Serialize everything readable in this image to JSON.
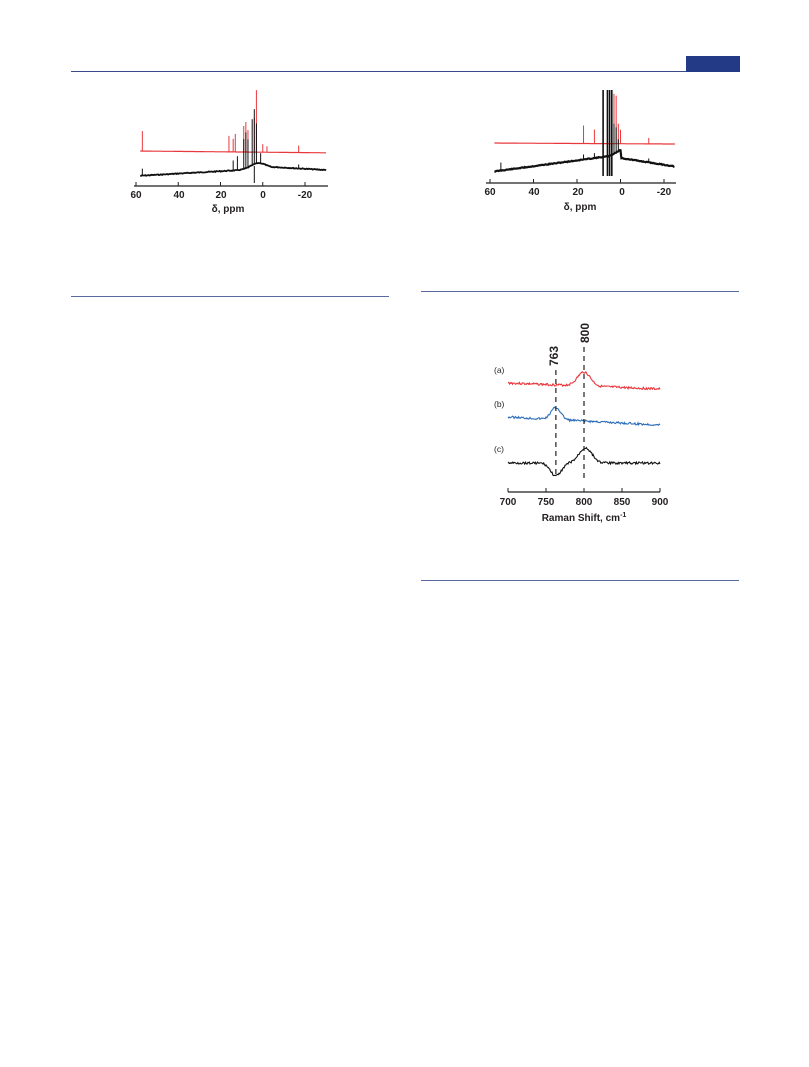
{
  "header": {
    "accent_color": "#233a86"
  },
  "figures": {
    "nmr_left": {
      "x_ticks": [
        "60",
        "40",
        "20",
        "0",
        "-20"
      ],
      "xlabel": "δ, ppm",
      "colors": {
        "top_trace": "#e8383d",
        "bottom_trace": "#111111"
      }
    },
    "nmr_right": {
      "x_ticks": [
        "60",
        "40",
        "20",
        "0",
        "-20"
      ],
      "xlabel": "δ, ppm",
      "colors": {
        "top_trace": "#e8383d",
        "bottom_trace": "#111111"
      }
    },
    "raman": {
      "x_ticks": [
        "700",
        "750",
        "800",
        "850",
        "900"
      ],
      "xlabel": "Raman Shift, cm",
      "xlabel_sup": "-1",
      "series_labels": [
        "(a)",
        "(b)",
        "(c)"
      ],
      "peak_labels": [
        "763",
        "800"
      ],
      "colors": {
        "a": "#e8383d",
        "b": "#2e6fba",
        "c": "#111111"
      }
    }
  },
  "chart_data": [
    {
      "type": "line",
      "x_ticks": [
        60,
        40,
        20,
        0,
        -20
      ],
      "xlabel": "δ, ppm",
      "xlim": [
        60,
        -30
      ],
      "series": [
        {
          "color": "#e8383d",
          "peaks_ppm": [
            57,
            16,
            14,
            13,
            9,
            8,
            7,
            4,
            3,
            0,
            -2,
            -17
          ]
        },
        {
          "color": "#111111",
          "peaks_ppm": [
            57,
            14,
            12,
            9,
            8,
            7,
            5,
            4,
            3,
            1,
            -17
          ]
        }
      ]
    },
    {
      "type": "line",
      "x_ticks": [
        60,
        40,
        20,
        0,
        -20
      ],
      "xlabel": "δ, ppm",
      "xlim": [
        60,
        -25
      ],
      "series": [
        {
          "color": "#e8383d",
          "peaks_ppm": [
            17,
            12,
            8,
            6,
            4,
            3,
            2,
            1,
            0,
            -13
          ]
        },
        {
          "color": "#111111",
          "peaks_ppm": [
            55,
            17,
            12,
            8,
            6,
            5,
            4,
            3,
            2,
            1,
            -13
          ]
        }
      ]
    },
    {
      "type": "line",
      "categories_label": "Raman Shift, cm-1",
      "x_ticks": [
        700,
        750,
        800,
        850,
        900
      ],
      "xlim": [
        700,
        900
      ],
      "reference_lines": [
        763,
        800
      ],
      "series": [
        {
          "label": "(a)",
          "color": "#e8383d",
          "features": [
            {
              "type": "peak",
              "x": 800
            }
          ]
        },
        {
          "label": "(b)",
          "color": "#2e6fba",
          "features": [
            {
              "type": "peak",
              "x": 763
            }
          ]
        },
        {
          "label": "(c)",
          "color": "#111111",
          "features": [
            {
              "type": "dip",
              "x": 763
            },
            {
              "type": "peak",
              "x": 800
            }
          ]
        }
      ]
    }
  ]
}
